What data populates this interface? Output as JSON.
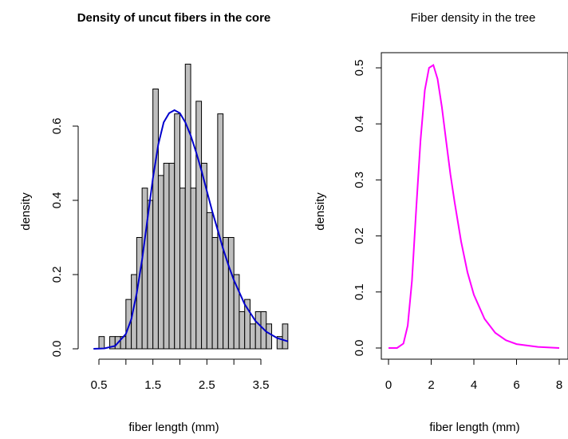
{
  "chart_data": [
    {
      "type": "bar",
      "title": "Density of uncut fibers in the core",
      "xlabel": "fiber length (mm)",
      "ylabel": "density",
      "xlim": [
        0.4,
        4.0
      ],
      "ylim": [
        0,
        0.8
      ],
      "xticks": [
        0.5,
        1.5,
        2.5,
        3.5
      ],
      "xtick_labels": [
        "0.5",
        "1.5",
        "2.5",
        "3.5"
      ],
      "yticks": [
        0.0,
        0.2,
        0.4,
        0.6
      ],
      "ytick_labels": [
        "0.0",
        "0.2",
        "0.4",
        "0.6"
      ],
      "bin_width": 0.1,
      "bins": [
        {
          "x0": 0.5,
          "x1": 0.6,
          "density": 0.033
        },
        {
          "x0": 0.6,
          "x1": 0.7,
          "density": 0.0
        },
        {
          "x0": 0.7,
          "x1": 0.8,
          "density": 0.033
        },
        {
          "x0": 0.8,
          "x1": 0.9,
          "density": 0.033
        },
        {
          "x0": 0.9,
          "x1": 1.0,
          "density": 0.033
        },
        {
          "x0": 1.0,
          "x1": 1.1,
          "density": 0.133
        },
        {
          "x0": 1.1,
          "x1": 1.2,
          "density": 0.2
        },
        {
          "x0": 1.2,
          "x1": 1.3,
          "density": 0.3
        },
        {
          "x0": 1.3,
          "x1": 1.4,
          "density": 0.433
        },
        {
          "x0": 1.4,
          "x1": 1.5,
          "density": 0.4
        },
        {
          "x0": 1.5,
          "x1": 1.6,
          "density": 0.7
        },
        {
          "x0": 1.6,
          "x1": 1.7,
          "density": 0.467
        },
        {
          "x0": 1.7,
          "x1": 1.8,
          "density": 0.5
        },
        {
          "x0": 1.8,
          "x1": 1.9,
          "density": 0.5
        },
        {
          "x0": 1.9,
          "x1": 2.0,
          "density": 0.633
        },
        {
          "x0": 2.0,
          "x1": 2.1,
          "density": 0.433
        },
        {
          "x0": 2.1,
          "x1": 2.2,
          "density": 0.767
        },
        {
          "x0": 2.2,
          "x1": 2.3,
          "density": 0.433
        },
        {
          "x0": 2.3,
          "x1": 2.4,
          "density": 0.667
        },
        {
          "x0": 2.4,
          "x1": 2.5,
          "density": 0.5
        },
        {
          "x0": 2.5,
          "x1": 2.6,
          "density": 0.367
        },
        {
          "x0": 2.6,
          "x1": 2.7,
          "density": 0.3
        },
        {
          "x0": 2.7,
          "x1": 2.8,
          "density": 0.633
        },
        {
          "x0": 2.8,
          "x1": 2.9,
          "density": 0.3
        },
        {
          "x0": 2.9,
          "x1": 3.0,
          "density": 0.3
        },
        {
          "x0": 3.0,
          "x1": 3.1,
          "density": 0.2
        },
        {
          "x0": 3.1,
          "x1": 3.2,
          "density": 0.1
        },
        {
          "x0": 3.2,
          "x1": 3.3,
          "density": 0.133
        },
        {
          "x0": 3.3,
          "x1": 3.4,
          "density": 0.067
        },
        {
          "x0": 3.4,
          "x1": 3.5,
          "density": 0.1
        },
        {
          "x0": 3.5,
          "x1": 3.6,
          "density": 0.1
        },
        {
          "x0": 3.6,
          "x1": 3.7,
          "density": 0.067
        },
        {
          "x0": 3.7,
          "x1": 3.8,
          "density": 0.0
        },
        {
          "x0": 3.8,
          "x1": 3.9,
          "density": 0.033
        },
        {
          "x0": 3.9,
          "x1": 4.0,
          "density": 0.067
        }
      ],
      "bar_fill": "#bebebe",
      "bar_stroke": "#000000",
      "curve": {
        "color": "#0000cd",
        "points": [
          [
            0.4,
            0.0
          ],
          [
            0.6,
            0.001
          ],
          [
            0.8,
            0.008
          ],
          [
            1.0,
            0.04
          ],
          [
            1.1,
            0.08
          ],
          [
            1.2,
            0.15
          ],
          [
            1.3,
            0.24
          ],
          [
            1.4,
            0.35
          ],
          [
            1.5,
            0.46
          ],
          [
            1.6,
            0.55
          ],
          [
            1.7,
            0.61
          ],
          [
            1.8,
            0.635
          ],
          [
            1.9,
            0.643
          ],
          [
            2.0,
            0.635
          ],
          [
            2.1,
            0.61
          ],
          [
            2.2,
            0.575
          ],
          [
            2.3,
            0.53
          ],
          [
            2.4,
            0.48
          ],
          [
            2.5,
            0.425
          ],
          [
            2.6,
            0.37
          ],
          [
            2.7,
            0.32
          ],
          [
            2.8,
            0.27
          ],
          [
            2.9,
            0.225
          ],
          [
            3.0,
            0.185
          ],
          [
            3.2,
            0.12
          ],
          [
            3.4,
            0.075
          ],
          [
            3.6,
            0.046
          ],
          [
            3.8,
            0.029
          ],
          [
            4.0,
            0.02
          ]
        ]
      }
    },
    {
      "type": "line",
      "title": "Fiber density in the tree",
      "xlabel": "fiber length (mm)",
      "ylabel": "density",
      "xlim": [
        -0.3,
        8.3
      ],
      "ylim": [
        -0.02,
        0.52
      ],
      "xticks": [
        0,
        2,
        4,
        6,
        8
      ],
      "xtick_labels": [
        "0",
        "2",
        "4",
        "6",
        "8"
      ],
      "yticks": [
        0.0,
        0.1,
        0.2,
        0.3,
        0.4,
        0.5
      ],
      "ytick_labels": [
        "0.0",
        "0.1",
        "0.2",
        "0.3",
        "0.4",
        "0.5"
      ],
      "series": [
        {
          "color": "#ff00ff",
          "x": [
            0,
            0.4,
            0.7,
            0.9,
            1.1,
            1.3,
            1.5,
            1.7,
            1.9,
            2.1,
            2.3,
            2.5,
            2.7,
            2.9,
            3.1,
            3.4,
            3.7,
            4.0,
            4.5,
            5.0,
            5.5,
            6.0,
            7.0,
            8.0
          ],
          "values": [
            0.0,
            0.0,
            0.008,
            0.04,
            0.12,
            0.25,
            0.37,
            0.46,
            0.5,
            0.505,
            0.48,
            0.43,
            0.37,
            0.31,
            0.26,
            0.19,
            0.135,
            0.095,
            0.052,
            0.027,
            0.014,
            0.007,
            0.002,
            0.0
          ]
        }
      ]
    }
  ]
}
